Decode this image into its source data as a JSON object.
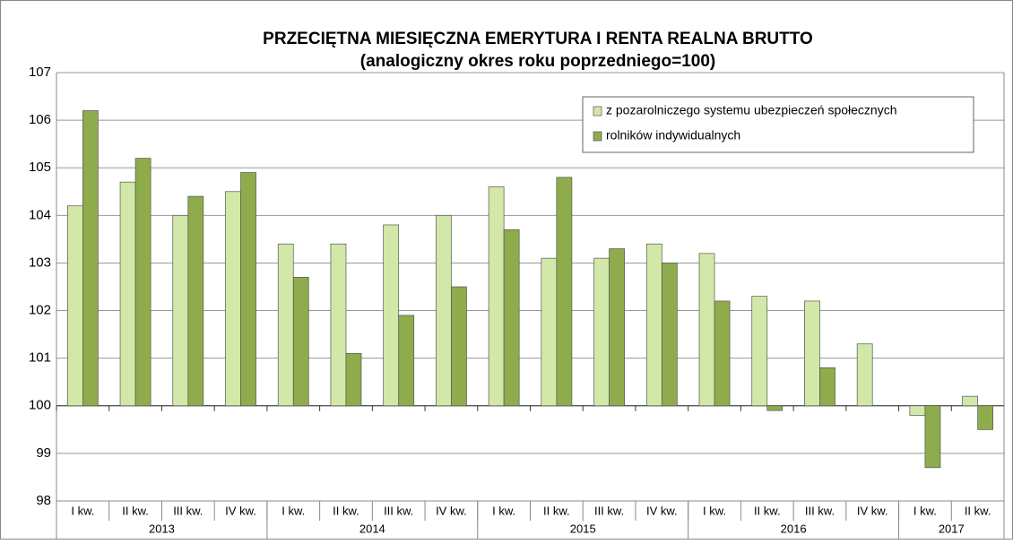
{
  "chart_data": {
    "type": "bar",
    "title": "PRZECIĘTNA MIESIĘCZNA EMERYTURA I RENTA REALNA BRUTTO",
    "subtitle": "(analogiczny okres roku poprzedniego=100)",
    "categories": [
      "I kw.",
      "II kw.",
      "III kw.",
      "IV kw.",
      "I kw.",
      "II kw.",
      "III kw.",
      "IV kw.",
      "I kw.",
      "II kw.",
      "III kw.",
      "IV kw.",
      "I kw.",
      "II kw.",
      "III kw.",
      "IV kw.",
      "I kw.",
      "II kw."
    ],
    "groups": [
      {
        "label": "2013",
        "span": 4
      },
      {
        "label": "2014",
        "span": 4
      },
      {
        "label": "2015",
        "span": 4
      },
      {
        "label": "2016",
        "span": 4
      },
      {
        "label": "2017",
        "span": 2
      }
    ],
    "base": 100,
    "series": [
      {
        "name": "z pozarolniczego systemu ubezpieczeń społecznych",
        "color": "#d2e8a8",
        "values": [
          104.2,
          104.7,
          104.0,
          104.5,
          103.4,
          103.4,
          103.8,
          104.0,
          104.6,
          103.1,
          103.1,
          103.4,
          103.2,
          102.3,
          102.2,
          101.3,
          99.8,
          100.2
        ]
      },
      {
        "name": "rolników indywidualnych",
        "color": "#8fac4c",
        "values": [
          106.2,
          105.2,
          104.4,
          104.9,
          102.7,
          101.1,
          101.9,
          102.5,
          103.7,
          104.8,
          103.3,
          103.0,
          102.2,
          99.9,
          100.8,
          null,
          98.7,
          99.5
        ]
      }
    ],
    "ylim": [
      98,
      107
    ],
    "yticks": [
      98,
      99,
      100,
      101,
      102,
      103,
      104,
      105,
      106,
      107
    ],
    "grid": true,
    "legend": "top-right"
  }
}
